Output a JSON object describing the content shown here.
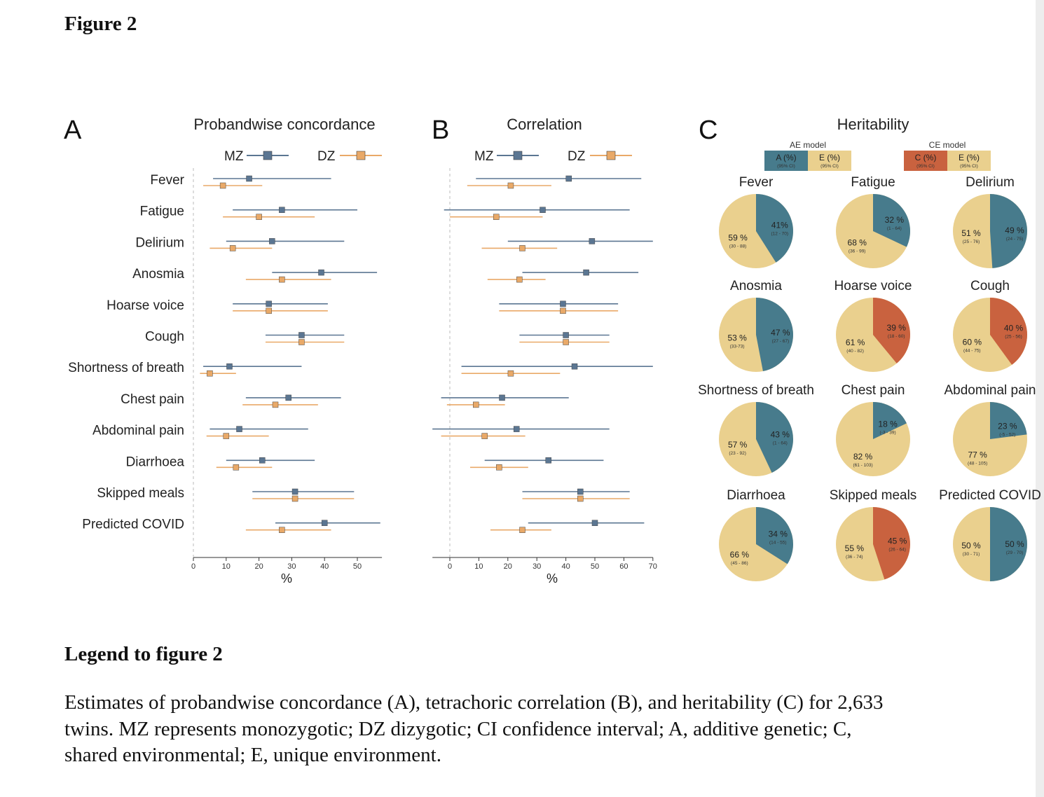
{
  "figure_title": "Figure 2",
  "legend_title": "Legend to figure 2",
  "legend_text": "Estimates of probandwise concordance (A), tetrachoric correlation (B), and heritability (C) for 2,633 twins. MZ represents monozygotic; DZ dizygotic; CI confidence interval; A, additive genetic; C, shared environmental; E, unique environment.",
  "colors": {
    "MZ": "#5b7692",
    "DZ": "#e9a968",
    "A": "#477b8c",
    "E": "#ead08e",
    "C": "#c9623f"
  },
  "chart_data": [
    {
      "panel": "A",
      "type": "forest",
      "title": "Probandwise concordance",
      "xlabel": "%",
      "xlim": [
        0,
        57.5
      ],
      "xticks": [
        0,
        10,
        20,
        30,
        40,
        50
      ],
      "legend": [
        "MZ",
        "DZ"
      ],
      "categories": [
        "Fever",
        "Fatigue",
        "Delirium",
        "Anosmia",
        "Hoarse voice",
        "Cough",
        "Shortness of breath",
        "Chest pain",
        "Abdominal pain",
        "Diarrhoea",
        "Skipped meals",
        "Predicted COVID"
      ],
      "series": [
        {
          "name": "MZ",
          "values": [
            17,
            27,
            24,
            39,
            23,
            33,
            11,
            29,
            14,
            21,
            31,
            40
          ],
          "lower": [
            6,
            12,
            10,
            24,
            12,
            22,
            3,
            16,
            5,
            10,
            18,
            25
          ],
          "upper": [
            42,
            50,
            46,
            56,
            41,
            46,
            33,
            45,
            35,
            37,
            49,
            57
          ]
        },
        {
          "name": "DZ",
          "values": [
            9,
            20,
            12,
            27,
            23,
            33,
            5,
            25,
            10,
            13,
            31,
            27
          ],
          "lower": [
            3,
            9,
            5,
            16,
            12,
            22,
            2,
            15,
            4,
            7,
            18,
            16
          ],
          "upper": [
            21,
            37,
            24,
            42,
            41,
            46,
            13,
            38,
            23,
            24,
            49,
            42
          ]
        }
      ]
    },
    {
      "panel": "B",
      "type": "forest",
      "title": "Correlation",
      "xlabel": "%",
      "xlim": [
        -6,
        70
      ],
      "xticks": [
        0,
        10,
        20,
        30,
        40,
        50,
        60,
        70
      ],
      "legend": [
        "MZ",
        "DZ"
      ],
      "categories": [
        "Fever",
        "Fatigue",
        "Delirium",
        "Anosmia",
        "Hoarse voice",
        "Cough",
        "Shortness of breath",
        "Chest pain",
        "Abdominal pain",
        "Diarrhoea",
        "Skipped meals",
        "Predicted COVID"
      ],
      "series": [
        {
          "name": "MZ",
          "values": [
            41,
            32,
            49,
            47,
            39,
            40,
            43,
            18,
            23,
            34,
            45,
            50
          ],
          "lower": [
            9,
            -2,
            20,
            25,
            17,
            24,
            4,
            -3,
            -6,
            12,
            25,
            27
          ],
          "upper": [
            66,
            62,
            70,
            65,
            58,
            55,
            70,
            41,
            55,
            53,
            62,
            67
          ]
        },
        {
          "name": "DZ",
          "values": [
            21,
            16,
            25,
            24,
            39,
            40,
            21,
            9,
            12,
            17,
            45,
            25
          ],
          "lower": [
            6,
            0,
            11,
            13,
            17,
            24,
            4,
            -1,
            -3,
            7,
            25,
            14
          ],
          "upper": [
            35,
            32,
            37,
            33,
            58,
            55,
            38,
            19,
            26,
            27,
            62,
            35
          ]
        }
      ]
    },
    {
      "panel": "C",
      "type": "pie",
      "title": "Heritability",
      "legend": [
        {
          "model": "AE model",
          "items": [
            {
              "key": "A",
              "label": "A (%)",
              "sub": "(95% CI)"
            },
            {
              "key": "E",
              "label": "E (%)",
              "sub": "(95% CI)"
            }
          ]
        },
        {
          "model": "CE model",
          "items": [
            {
              "key": "C",
              "label": "C (%)",
              "sub": "(95% CI)"
            },
            {
              "key": "E",
              "label": "E (%)",
              "sub": "(95% CI)"
            }
          ]
        }
      ],
      "pies": [
        {
          "name": "Fever",
          "component": "A",
          "value": 41,
          "label": "41%",
          "ci": "(12 - 70)",
          "e_label": "59 %",
          "e_ci": "(30 - 88)"
        },
        {
          "name": "Fatigue",
          "component": "A",
          "value": 32,
          "label": "32 %",
          "ci": "(1 - 64)",
          "e_label": "68 %",
          "e_ci": "(36 - 99)"
        },
        {
          "name": "Delirium",
          "component": "A",
          "value": 49,
          "label": "49 %",
          "ci": "(24 - 75)",
          "e_label": "51 %",
          "e_ci": "(25 - 76)"
        },
        {
          "name": "Anosmia",
          "component": "A",
          "value": 47,
          "label": "47 %",
          "ci": "(27 - 67)",
          "e_label": "53 %",
          "e_ci": "(33-73)"
        },
        {
          "name": "Hoarse voice",
          "component": "C",
          "value": 39,
          "label": "39 %",
          "ci": "(18 - 60)",
          "e_label": "61 %",
          "e_ci": "(40 - 82)"
        },
        {
          "name": "Cough",
          "component": "C",
          "value": 40,
          "label": "40 %",
          "ci": "(25 - 56)",
          "e_label": "60 %",
          "e_ci": "(44 - 75)"
        },
        {
          "name": "Shortness of breath",
          "component": "A",
          "value": 43,
          "label": "43 %",
          "ci": "(1 - 64)",
          "e_label": "57 %",
          "e_ci": "(23 - 92)"
        },
        {
          "name": "Chest pain",
          "component": "A",
          "value": 18,
          "label": "18 %",
          "ci": "(-3 - 39)",
          "e_label": "82 %",
          "e_ci": "(61 - 103)"
        },
        {
          "name": "Abdominal pain",
          "component": "A",
          "value": 23,
          "label": "23 %",
          "ci": "(-5 - 52)",
          "e_label": "77 %",
          "e_ci": "(48 - 105)"
        },
        {
          "name": "Diarrhoea",
          "component": "A",
          "value": 34,
          "label": "34 %",
          "ci": "(14 - 55)",
          "e_label": "66 %",
          "e_ci": "(45 - 86)"
        },
        {
          "name": "Skipped meals",
          "component": "C",
          "value": 45,
          "label": "45 %",
          "ci": "(26 - 64)",
          "e_label": "55 %",
          "e_ci": "(36 - 74)"
        },
        {
          "name": "Predicted COVID",
          "component": "A",
          "value": 50,
          "label": "50 %",
          "ci": "(29 - 70)",
          "e_label": "50 %",
          "e_ci": "(30 - 71)"
        }
      ]
    }
  ]
}
